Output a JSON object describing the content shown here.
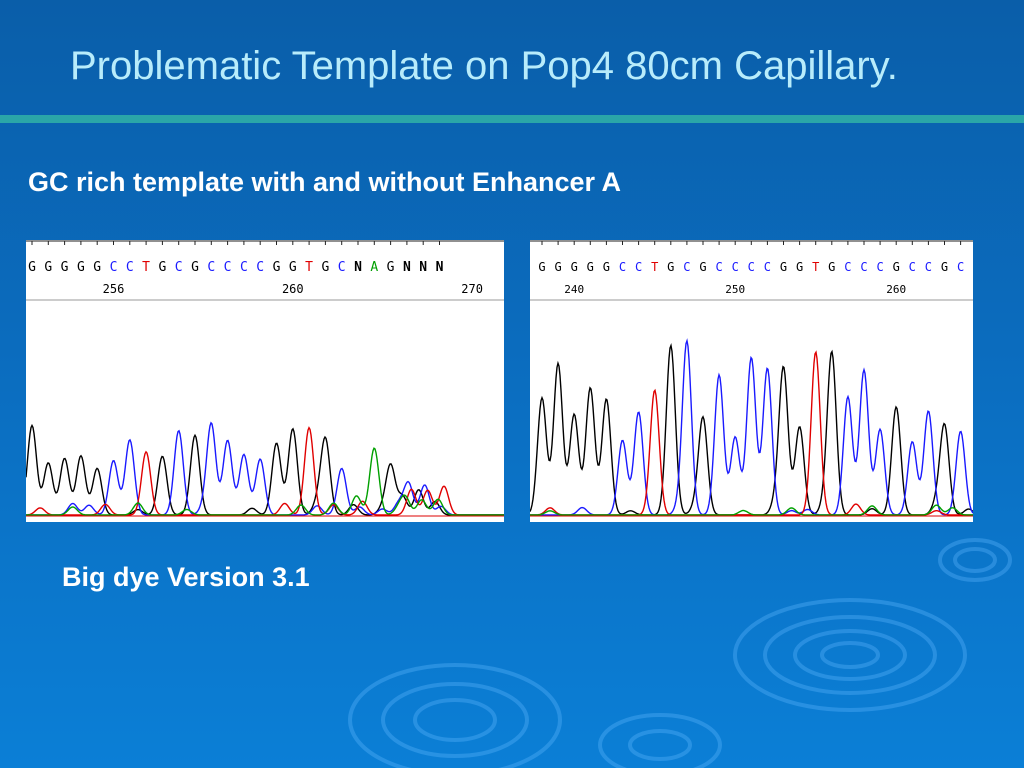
{
  "title": "Problematic Template on Pop4 80cm Capillary.",
  "subtitle": "GC rich template with and without Enhancer A",
  "footnote": "Big dye Version 3.1",
  "colors": {
    "G": "#000000",
    "C": "#1a1aff",
    "T": "#e00000",
    "A": "#00a000",
    "N": "#000000"
  },
  "panels": [
    {
      "bases": [
        "G",
        "G",
        "G",
        "G",
        "G",
        "C",
        "C",
        "T",
        "G",
        "C",
        "G",
        "C",
        "C",
        "C",
        "C",
        "G",
        "G",
        "T",
        "G",
        "C",
        "N",
        "A",
        "G",
        "N",
        "N",
        "N"
      ],
      "numbers": [
        {
          "label": "256",
          "base_index": 5
        },
        {
          "label": "260",
          "base_index": 16
        },
        {
          "label": "270",
          "base_index": 27
        }
      ]
    },
    {
      "bases": [
        "G",
        "G",
        "G",
        "G",
        "G",
        "C",
        "C",
        "T",
        "G",
        "C",
        "G",
        "C",
        "C",
        "C",
        "C",
        "G",
        "G",
        "T",
        "G",
        "C",
        "C",
        "C",
        "G",
        "C",
        "C",
        "G",
        "C"
      ],
      "numbers": [
        {
          "label": "240",
          "base_index": 2
        },
        {
          "label": "250",
          "base_index": 12
        },
        {
          "label": "260",
          "base_index": 22
        }
      ]
    }
  ]
}
